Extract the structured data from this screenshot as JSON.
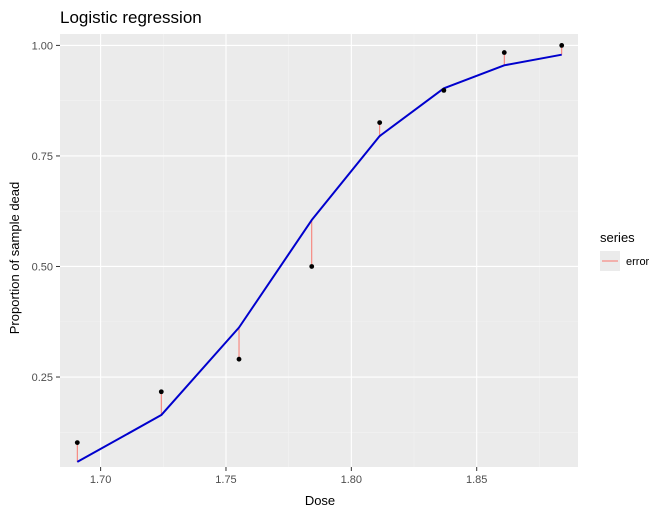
{
  "chart_data": {
    "type": "line",
    "title": "Logistic regression",
    "xlabel": "Dose",
    "ylabel": "Proportion of sample dead",
    "xlim": [
      1.6838,
      1.8904
    ],
    "ylim": [
      0.0465,
      1.0258
    ],
    "x_ticks": [
      1.7,
      1.75,
      1.8,
      1.85
    ],
    "x_tick_labels": [
      "1.70",
      "1.75",
      "1.80",
      "1.85"
    ],
    "y_ticks": [
      0.25,
      0.5,
      0.75,
      1.0
    ],
    "y_tick_labels": [
      "0.25",
      "0.50",
      "0.75",
      "1.00"
    ],
    "grid": true,
    "legend_position": "right",
    "observed": {
      "x": [
        1.6907,
        1.7242,
        1.7552,
        1.7842,
        1.8113,
        1.8369,
        1.861,
        1.8839
      ],
      "y": [
        0.1017,
        0.2167,
        0.2903,
        0.5,
        0.8254,
        0.8983,
        0.9839,
        1.0
      ]
    },
    "fitted": {
      "x": [
        1.6907,
        1.7242,
        1.7552,
        1.7842,
        1.8113,
        1.8369,
        1.861,
        1.8839
      ],
      "y": [
        0.058,
        0.164,
        0.362,
        0.605,
        0.795,
        0.903,
        0.955,
        0.979
      ]
    },
    "legend": {
      "title": "series",
      "entries": [
        {
          "label": "error",
          "color": "#f8766d"
        }
      ]
    },
    "colors": {
      "panel": "#ebebeb",
      "grid_major": "#ffffff",
      "fit_line": "#0000cd",
      "error": "#f8766d",
      "points": "#000000"
    }
  }
}
